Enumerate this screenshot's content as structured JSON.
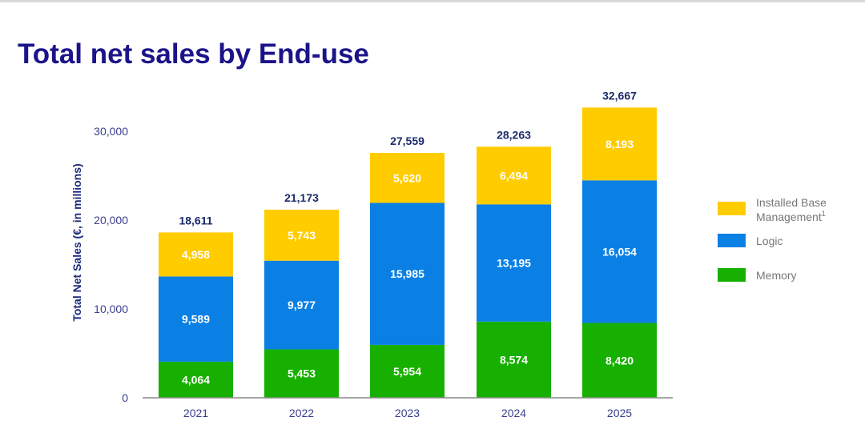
{
  "title": "Total net sales by End-use",
  "chart_data": {
    "type": "bar",
    "stacked": true,
    "title": "Total net sales by End-use",
    "xlabel": "",
    "ylabel": "Total Net Sales (€, in millions)",
    "ylim": [
      0,
      30000
    ],
    "yticks": [
      0,
      10000,
      20000,
      30000
    ],
    "ytick_labels": [
      "0",
      "10,000",
      "20,000",
      "30,000"
    ],
    "categories": [
      "2021",
      "2022",
      "2023",
      "2024",
      "2025"
    ],
    "series": [
      {
        "name": "Memory",
        "color": "#17b000",
        "values": [
          4064,
          5453,
          5954,
          8574,
          8420
        ],
        "labels": [
          "4,064",
          "5,453",
          "5,954",
          "8,574",
          "8,420"
        ]
      },
      {
        "name": "Logic",
        "color": "#0a80e4",
        "values": [
          9589,
          9977,
          15985,
          13195,
          16054
        ],
        "labels": [
          "9,589",
          "9,977",
          "15,985",
          "13,195",
          "16,054"
        ]
      },
      {
        "name": "Installed Base Management",
        "superscript": "1",
        "color": "#ffcc00",
        "values": [
          4958,
          5743,
          5620,
          6494,
          8193
        ],
        "labels": [
          "4,958",
          "5,743",
          "5,620",
          "6,494",
          "8,193"
        ]
      }
    ],
    "totals": [
      "18,611",
      "21,173",
      "27,559",
      "28,263",
      "32,667"
    ],
    "legend": {
      "placement": "right",
      "entries": [
        {
          "line1": "Installed Base",
          "line2": "Management",
          "sup": "1",
          "color": "#ffcc00"
        },
        {
          "line1": "Logic",
          "color": "#0a80e4"
        },
        {
          "line1": "Memory",
          "color": "#17b000"
        }
      ]
    },
    "grid": false
  }
}
